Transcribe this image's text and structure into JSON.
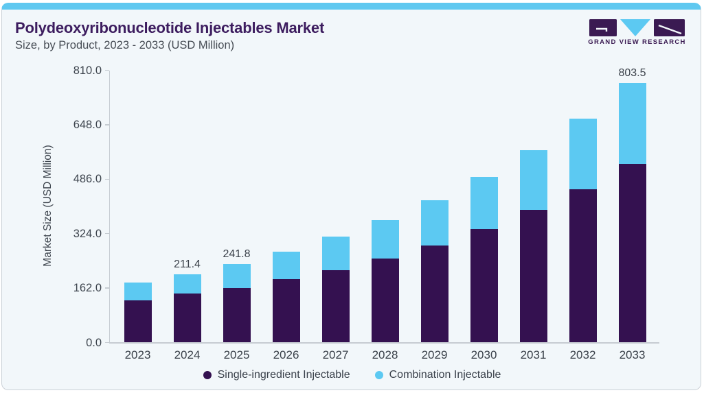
{
  "page": {
    "card_background": "#f2f7fa",
    "accent_color": "#5fc8f0",
    "border_color": "#cbd1d7",
    "axis_color": "#c6ccd2"
  },
  "header": {
    "title": "Polydeoxyribonucleotide Injectables Market",
    "subtitle": "Size, by Product, 2023 - 2033 (USD Million)",
    "title_color": "#3d1d5f",
    "logo_text": "GRAND VIEW RESEARCH"
  },
  "chart_data": {
    "type": "bar",
    "stacked": true,
    "title": "Polydeoxyribonucleotide Injectables Market Size, by Product, 2023 - 2033 (USD Million)",
    "categories": [
      "2023",
      "2024",
      "2025",
      "2026",
      "2027",
      "2028",
      "2029",
      "2030",
      "2031",
      "2032",
      "2033"
    ],
    "series": [
      {
        "name": "Single-ingredient Injectable",
        "color": "#341150",
        "values": [
          129.0,
          150.1,
          169.1,
          196.0,
          224.0,
          259.3,
          301.0,
          350.7,
          410.7,
          475.3,
          552.8
        ]
      },
      {
        "name": "Combination Injectable",
        "color": "#5cc9f2",
        "values": [
          55.8,
          61.3,
          72.7,
          85.0,
          102.6,
          120.3,
          140.2,
          162.1,
          185.3,
          217.4,
          250.7
        ]
      }
    ],
    "totals": [
      184.8,
      211.4,
      241.8,
      281.0,
      326.6,
      379.6,
      441.2,
      512.8,
      596.0,
      692.7,
      803.5
    ],
    "data_labels": [
      {
        "category": "2024",
        "text": "211.4"
      },
      {
        "category": "2025",
        "text": "241.8"
      },
      {
        "category": "2033",
        "text": "803.5"
      }
    ],
    "xlabel": "",
    "ylabel": "Market Size (USD Million)",
    "y_ticks": [
      "0.0",
      "162.0",
      "324.0",
      "486.0",
      "648.0",
      "810.0"
    ],
    "y_tick_values": [
      0,
      162,
      324,
      486,
      648,
      810
    ],
    "ylim": [
      0,
      810
    ],
    "grid": false,
    "legend_position": "bottom"
  }
}
